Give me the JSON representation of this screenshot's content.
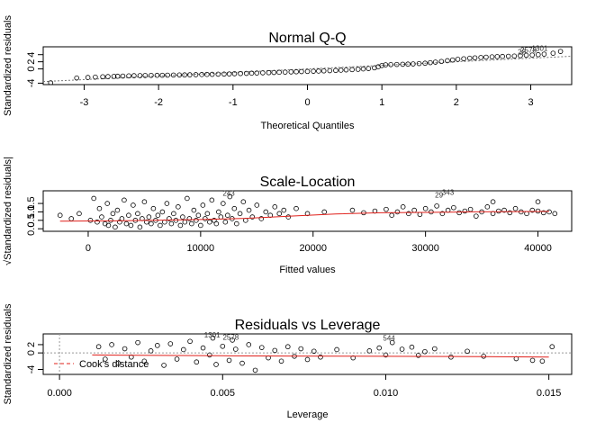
{
  "chart_data": [
    {
      "type": "scatter",
      "title": "Normal Q-Q",
      "xlabel": "Theoretical Quantiles",
      "ylabel": "Standardized residuals",
      "xlim": [
        -3.55,
        3.55
      ],
      "ylim": [
        -4.4,
        6.2
      ],
      "x_ticks": [
        "-3",
        "-2",
        "-1",
        "0",
        "1",
        "2",
        "3"
      ],
      "x_tick_values": [
        -3,
        -2,
        -1,
        0,
        1,
        2,
        3
      ],
      "y_ticks": [
        "-4",
        "0",
        "2",
        "4"
      ],
      "y_tick_values": [
        -4,
        0,
        2,
        4
      ],
      "reference_line": {
        "slope": 1.0,
        "intercept": 0
      },
      "annotations": [
        {
          "text": "1301",
          "x": 3.12,
          "y": 5.1
        },
        {
          "text": "2578",
          "x": 2.97,
          "y": 4.5
        },
        {
          "text": "28",
          "x": 2.88,
          "y": 4.1
        }
      ],
      "points": [
        [
          -3.45,
          -3.9
        ],
        [
          -3.1,
          -2.55
        ],
        [
          -2.95,
          -2.4
        ],
        [
          -2.85,
          -2.3
        ],
        [
          -2.75,
          -2.2
        ],
        [
          -2.68,
          -2.15
        ],
        [
          -2.6,
          -2.1
        ],
        [
          -2.55,
          -2.05
        ],
        [
          -2.48,
          -2.0
        ],
        [
          -2.4,
          -1.95
        ],
        [
          -2.33,
          -1.9
        ],
        [
          -2.25,
          -1.88
        ],
        [
          -2.18,
          -1.85
        ],
        [
          -2.1,
          -1.82
        ],
        [
          -2.02,
          -1.8
        ],
        [
          -1.95,
          -1.78
        ],
        [
          -1.88,
          -1.75
        ],
        [
          -1.8,
          -1.72
        ],
        [
          -1.72,
          -1.7
        ],
        [
          -1.65,
          -1.68
        ],
        [
          -1.58,
          -1.65
        ],
        [
          -1.5,
          -1.62
        ],
        [
          -1.42,
          -1.58
        ],
        [
          -1.35,
          -1.55
        ],
        [
          -1.28,
          -1.52
        ],
        [
          -1.2,
          -1.48
        ],
        [
          -1.12,
          -1.45
        ],
        [
          -1.05,
          -1.4
        ],
        [
          -0.98,
          -1.35
        ],
        [
          -0.9,
          -1.3
        ],
        [
          -0.82,
          -1.25
        ],
        [
          -0.75,
          -1.2
        ],
        [
          -0.68,
          -1.15
        ],
        [
          -0.6,
          -1.1
        ],
        [
          -0.52,
          -1.05
        ],
        [
          -0.45,
          -1.0
        ],
        [
          -0.38,
          -0.95
        ],
        [
          -0.3,
          -0.9
        ],
        [
          -0.22,
          -0.85
        ],
        [
          -0.15,
          -0.8
        ],
        [
          -0.08,
          -0.75
        ],
        [
          0.0,
          -0.7
        ],
        [
          0.08,
          -0.65
        ],
        [
          0.15,
          -0.6
        ],
        [
          0.22,
          -0.55
        ],
        [
          0.3,
          -0.5
        ],
        [
          0.38,
          -0.42
        ],
        [
          0.45,
          -0.35
        ],
        [
          0.52,
          -0.28
        ],
        [
          0.6,
          -0.2
        ],
        [
          0.68,
          -0.1
        ],
        [
          0.75,
          0.0
        ],
        [
          0.82,
          0.1
        ],
        [
          0.9,
          0.3
        ],
        [
          0.95,
          0.6
        ],
        [
          1.0,
          0.95
        ],
        [
          1.05,
          1.15
        ],
        [
          1.12,
          1.2
        ],
        [
          1.2,
          1.25
        ],
        [
          1.28,
          1.3
        ],
        [
          1.35,
          1.35
        ],
        [
          1.42,
          1.4
        ],
        [
          1.5,
          1.5
        ],
        [
          1.58,
          1.6
        ],
        [
          1.65,
          1.75
        ],
        [
          1.72,
          1.9
        ],
        [
          1.8,
          2.1
        ],
        [
          1.88,
          2.3
        ],
        [
          1.95,
          2.5
        ],
        [
          2.02,
          2.7
        ],
        [
          2.1,
          2.85
        ],
        [
          2.18,
          3.0
        ],
        [
          2.25,
          3.1
        ],
        [
          2.33,
          3.2
        ],
        [
          2.4,
          3.3
        ],
        [
          2.48,
          3.38
        ],
        [
          2.55,
          3.45
        ],
        [
          2.62,
          3.5
        ],
        [
          2.7,
          3.55
        ],
        [
          2.78,
          3.6
        ],
        [
          2.86,
          3.7
        ],
        [
          2.94,
          3.82
        ],
        [
          3.02,
          3.9
        ],
        [
          3.1,
          4.0
        ],
        [
          3.18,
          4.15
        ],
        [
          3.3,
          4.4
        ],
        [
          3.4,
          4.9
        ]
      ]
    },
    {
      "type": "scatter",
      "title": "Scale-Location",
      "xlabel": "Fitted values",
      "ylabel": "√Standardized residuals|",
      "xlim": [
        -4000,
        43000
      ],
      "ylim": [
        -0.15,
        2.25
      ],
      "x_ticks": [
        "0",
        "10000",
        "20000",
        "30000",
        "40000"
      ],
      "x_tick_values": [
        0,
        10000,
        20000,
        30000,
        40000
      ],
      "y_ticks": [
        "0.0",
        "0.5",
        "1.0",
        "1.5"
      ],
      "y_tick_values": [
        0.0,
        0.5,
        1.0,
        1.5
      ],
      "smoother": [
        [
          -2500,
          0.45
        ],
        [
          2000,
          0.47
        ],
        [
          6000,
          0.5
        ],
        [
          10000,
          0.55
        ],
        [
          14000,
          0.62
        ],
        [
          18000,
          0.75
        ],
        [
          22000,
          0.88
        ],
        [
          26000,
          0.95
        ],
        [
          30000,
          0.97
        ],
        [
          34000,
          1.0
        ],
        [
          38000,
          1.02
        ],
        [
          41000,
          1.03
        ]
      ],
      "annotations": [
        {
          "text": "243",
          "x": 12500,
          "y": 1.95
        },
        {
          "text": "343",
          "x": 32000,
          "y": 2.0
        },
        {
          "text": "29",
          "x": 31200,
          "y": 1.85
        }
      ],
      "points": [
        [
          -2500,
          0.8
        ],
        [
          -1500,
          0.6
        ],
        [
          -800,
          0.9
        ],
        [
          200,
          0.5
        ],
        [
          500,
          1.8
        ],
        [
          800,
          0.4
        ],
        [
          1000,
          1.2
        ],
        [
          1200,
          0.7
        ],
        [
          1500,
          0.3
        ],
        [
          1700,
          1.5
        ],
        [
          1800,
          0.2
        ],
        [
          2000,
          0.5
        ],
        [
          2200,
          0.9
        ],
        [
          2400,
          0.1
        ],
        [
          2600,
          1.1
        ],
        [
          2800,
          0.4
        ],
        [
          3000,
          0.6
        ],
        [
          3200,
          1.7
        ],
        [
          3400,
          0.3
        ],
        [
          3600,
          0.8
        ],
        [
          3800,
          0.2
        ],
        [
          4000,
          1.4
        ],
        [
          4200,
          0.5
        ],
        [
          4400,
          0.9
        ],
        [
          4600,
          0.1
        ],
        [
          4800,
          0.6
        ],
        [
          5000,
          1.6
        ],
        [
          5200,
          0.4
        ],
        [
          5400,
          0.7
        ],
        [
          5600,
          0.3
        ],
        [
          5800,
          1.2
        ],
        [
          6000,
          0.5
        ],
        [
          6200,
          0.8
        ],
        [
          6400,
          0.2
        ],
        [
          6600,
          1.0
        ],
        [
          6800,
          0.4
        ],
        [
          7000,
          1.5
        ],
        [
          7200,
          0.6
        ],
        [
          7400,
          0.3
        ],
        [
          7600,
          0.9
        ],
        [
          7800,
          0.5
        ],
        [
          8000,
          1.3
        ],
        [
          8200,
          0.2
        ],
        [
          8400,
          0.7
        ],
        [
          8600,
          0.4
        ],
        [
          8800,
          1.8
        ],
        [
          9000,
          0.6
        ],
        [
          9200,
          0.3
        ],
        [
          9400,
          1.1
        ],
        [
          9600,
          0.5
        ],
        [
          9800,
          0.8
        ],
        [
          10000,
          0.2
        ],
        [
          10200,
          1.4
        ],
        [
          10400,
          0.6
        ],
        [
          10600,
          0.9
        ],
        [
          10800,
          0.4
        ],
        [
          11000,
          1.7
        ],
        [
          11200,
          0.5
        ],
        [
          11400,
          0.3
        ],
        [
          11600,
          1.0
        ],
        [
          11800,
          0.7
        ],
        [
          12000,
          1.5
        ],
        [
          12200,
          0.4
        ],
        [
          12400,
          0.8
        ],
        [
          12600,
          1.9
        ],
        [
          12800,
          0.6
        ],
        [
          13000,
          1.2
        ],
        [
          13200,
          0.3
        ],
        [
          13500,
          0.9
        ],
        [
          13800,
          1.6
        ],
        [
          14000,
          0.5
        ],
        [
          14300,
          1.1
        ],
        [
          14600,
          0.7
        ],
        [
          15000,
          1.4
        ],
        [
          15400,
          0.6
        ],
        [
          15800,
          1.0
        ],
        [
          16200,
          0.8
        ],
        [
          16600,
          1.3
        ],
        [
          17000,
          0.9
        ],
        [
          17400,
          1.1
        ],
        [
          17800,
          0.7
        ],
        [
          18500,
          1.2
        ],
        [
          19500,
          0.9
        ],
        [
          21000,
          1.0
        ],
        [
          23500,
          1.1
        ],
        [
          24500,
          0.95
        ],
        [
          25500,
          1.05
        ],
        [
          26500,
          1.15
        ],
        [
          27000,
          0.8
        ],
        [
          27500,
          1.0
        ],
        [
          28000,
          1.3
        ],
        [
          28500,
          0.9
        ],
        [
          29000,
          1.1
        ],
        [
          29500,
          0.85
        ],
        [
          30000,
          1.2
        ],
        [
          30500,
          1.0
        ],
        [
          31000,
          1.35
        ],
        [
          31500,
          0.9
        ],
        [
          32000,
          1.1
        ],
        [
          32500,
          1.25
        ],
        [
          33000,
          0.95
        ],
        [
          33500,
          1.05
        ],
        [
          34000,
          1.15
        ],
        [
          34500,
          0.75
        ],
        [
          35000,
          1.0
        ],
        [
          35500,
          1.3
        ],
        [
          36000,
          0.9
        ],
        [
          36500,
          1.05
        ],
        [
          37000,
          1.1
        ],
        [
          37500,
          0.95
        ],
        [
          38000,
          1.2
        ],
        [
          38500,
          1.0
        ],
        [
          39000,
          0.9
        ],
        [
          39500,
          1.1
        ],
        [
          40000,
          1.05
        ],
        [
          40500,
          0.95
        ],
        [
          41000,
          1.0
        ],
        [
          41500,
          0.9
        ],
        [
          36000,
          1.6
        ],
        [
          40000,
          1.6
        ]
      ]
    },
    {
      "type": "scatter",
      "title": "Residuals vs Leverage",
      "xlabel": "Leverage",
      "ylabel": "Standardized residuals",
      "xlim": [
        -0.0005,
        0.0157
      ],
      "ylim": [
        -5.2,
        4.6
      ],
      "x_ticks": [
        "0.000",
        "0.005",
        "0.010",
        "0.015"
      ],
      "x_tick_values": [
        0.0,
        0.005,
        0.01,
        0.015
      ],
      "y_ticks": [
        "-4",
        "0",
        "2"
      ],
      "y_tick_values": [
        -4,
        0,
        2
      ],
      "smoother": [
        [
          0.001,
          -0.5
        ],
        [
          0.003,
          -0.6
        ],
        [
          0.005,
          -0.7
        ],
        [
          0.007,
          -0.75
        ],
        [
          0.009,
          -0.8
        ],
        [
          0.011,
          -0.85
        ],
        [
          0.013,
          -0.9
        ],
        [
          0.015,
          -1.0
        ]
      ],
      "legend": {
        "label": "Cook's distance",
        "position": "bottom-left"
      },
      "annotations": [
        {
          "text": "1301",
          "x": 0.00468,
          "y": 3.7
        },
        {
          "text": "2578",
          "x": 0.00525,
          "y": 3.2
        },
        {
          "text": "544",
          "x": 0.0101,
          "y": 3.0
        }
      ],
      "points": [
        [
          0.0012,
          1.5
        ],
        [
          0.0014,
          -1.5
        ],
        [
          0.0016,
          2.0
        ],
        [
          0.0018,
          -2.5
        ],
        [
          0.002,
          1.0
        ],
        [
          0.0022,
          -1.0
        ],
        [
          0.0024,
          2.5
        ],
        [
          0.0026,
          -2.0
        ],
        [
          0.0028,
          0.5
        ],
        [
          0.003,
          1.8
        ],
        [
          0.0032,
          -3.0
        ],
        [
          0.0034,
          2.2
        ],
        [
          0.0036,
          -1.5
        ],
        [
          0.0038,
          0.8
        ],
        [
          0.004,
          2.8
        ],
        [
          0.0042,
          -2.2
        ],
        [
          0.0044,
          1.2
        ],
        [
          0.0046,
          -0.5
        ],
        [
          0.0047,
          3.6
        ],
        [
          0.0048,
          -2.8
        ],
        [
          0.005,
          1.6
        ],
        [
          0.0052,
          -1.8
        ],
        [
          0.0053,
          3.1
        ],
        [
          0.0054,
          0.9
        ],
        [
          0.0056,
          -2.5
        ],
        [
          0.0058,
          2.0
        ],
        [
          0.006,
          -4.2
        ],
        [
          0.0062,
          1.3
        ],
        [
          0.0064,
          -1.2
        ],
        [
          0.0066,
          0.6
        ],
        [
          0.0068,
          -2.0
        ],
        [
          0.007,
          1.5
        ],
        [
          0.0072,
          -0.8
        ],
        [
          0.0074,
          1.0
        ],
        [
          0.0076,
          -1.6
        ],
        [
          0.0078,
          0.4
        ],
        [
          0.008,
          -1.0
        ],
        [
          0.0085,
          0.8
        ],
        [
          0.009,
          -1.2
        ],
        [
          0.0095,
          0.5
        ],
        [
          0.0098,
          1.2
        ],
        [
          0.01,
          -0.5
        ],
        [
          0.0102,
          2.5
        ],
        [
          0.0105,
          0.9
        ],
        [
          0.0108,
          1.4
        ],
        [
          0.011,
          -0.6
        ],
        [
          0.0112,
          0.3
        ],
        [
          0.0115,
          1.0
        ],
        [
          0.012,
          -1.0
        ],
        [
          0.0125,
          0.4
        ],
        [
          0.013,
          -0.8
        ],
        [
          0.014,
          -1.4
        ],
        [
          0.0145,
          -1.8
        ],
        [
          0.0148,
          -2.0
        ],
        [
          0.0151,
          1.5
        ]
      ]
    }
  ]
}
